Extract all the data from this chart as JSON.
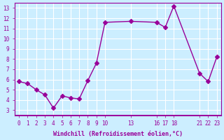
{
  "x": [
    0,
    1,
    2,
    3,
    4,
    5,
    6,
    7,
    8,
    9,
    10,
    13,
    16,
    17,
    18,
    21,
    22,
    23
  ],
  "y": [
    5.8,
    5.6,
    5.0,
    4.5,
    3.2,
    4.4,
    4.2,
    4.1,
    5.9,
    7.6,
    11.6,
    11.7,
    11.6,
    11.1,
    13.2,
    6.6,
    5.8,
    8.2
  ],
  "line_color": "#990099",
  "marker": "D",
  "marker_size": 3,
  "bg_color": "#cceeff",
  "grid_color": "#ffffff",
  "xlabel": "Windchill (Refroidissement éolien,°C)",
  "xlabel_color": "#990099",
  "tick_color": "#990099",
  "ylim": [
    3,
    13
  ],
  "xlim": [
    0,
    23
  ],
  "yticks": [
    3,
    4,
    5,
    6,
    7,
    8,
    9,
    10,
    11,
    12,
    13
  ],
  "xticks": [
    0,
    1,
    2,
    3,
    4,
    5,
    6,
    7,
    8,
    9,
    10,
    13,
    16,
    17,
    18,
    21,
    22,
    23
  ],
  "xtick_labels": [
    "0",
    "1",
    "2",
    "3",
    "4",
    "5",
    "6",
    "7",
    "8",
    "9",
    "10",
    "13",
    "16",
    "17",
    "18",
    "21",
    "22",
    "23"
  ]
}
